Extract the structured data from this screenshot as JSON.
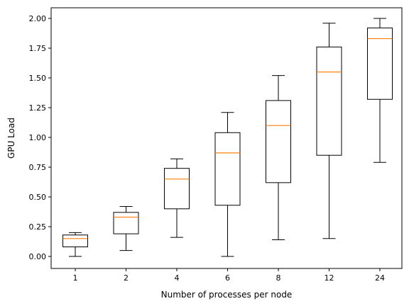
{
  "chart_data": {
    "type": "boxplot",
    "title": "",
    "xlabel": "Number of processes per node",
    "ylabel": "GPU Load",
    "ylim": [
      -0.1,
      2.1
    ],
    "yticks": [
      "0.00",
      "0.25",
      "0.50",
      "0.75",
      "1.00",
      "1.25",
      "1.50",
      "1.75",
      "2.00"
    ],
    "ytick_values": [
      0.0,
      0.25,
      0.5,
      0.75,
      1.0,
      1.25,
      1.5,
      1.75,
      2.0
    ],
    "grid": false,
    "categories": [
      "1",
      "2",
      "4",
      "6",
      "8",
      "12",
      "24"
    ],
    "boxes": [
      {
        "whisker_low": 0.0,
        "q1": 0.08,
        "median": 0.15,
        "q3": 0.18,
        "whisker_high": 0.2
      },
      {
        "whisker_low": 0.05,
        "q1": 0.19,
        "median": 0.33,
        "q3": 0.37,
        "whisker_high": 0.42
      },
      {
        "whisker_low": 0.16,
        "q1": 0.4,
        "median": 0.65,
        "q3": 0.74,
        "whisker_high": 0.82
      },
      {
        "whisker_low": 0.0,
        "q1": 0.43,
        "median": 0.87,
        "q3": 1.04,
        "whisker_high": 1.21
      },
      {
        "whisker_low": 0.14,
        "q1": 0.62,
        "median": 1.1,
        "q3": 1.31,
        "whisker_high": 1.52
      },
      {
        "whisker_low": 0.15,
        "q1": 0.85,
        "median": 1.55,
        "q3": 1.76,
        "whisker_high": 1.96
      },
      {
        "whisker_low": 0.79,
        "q1": 1.32,
        "median": 1.83,
        "q3": 1.92,
        "whisker_high": 2.0
      }
    ],
    "colors": {
      "box": "#000000",
      "median": "#ff7f0e",
      "axis": "#000000"
    }
  }
}
